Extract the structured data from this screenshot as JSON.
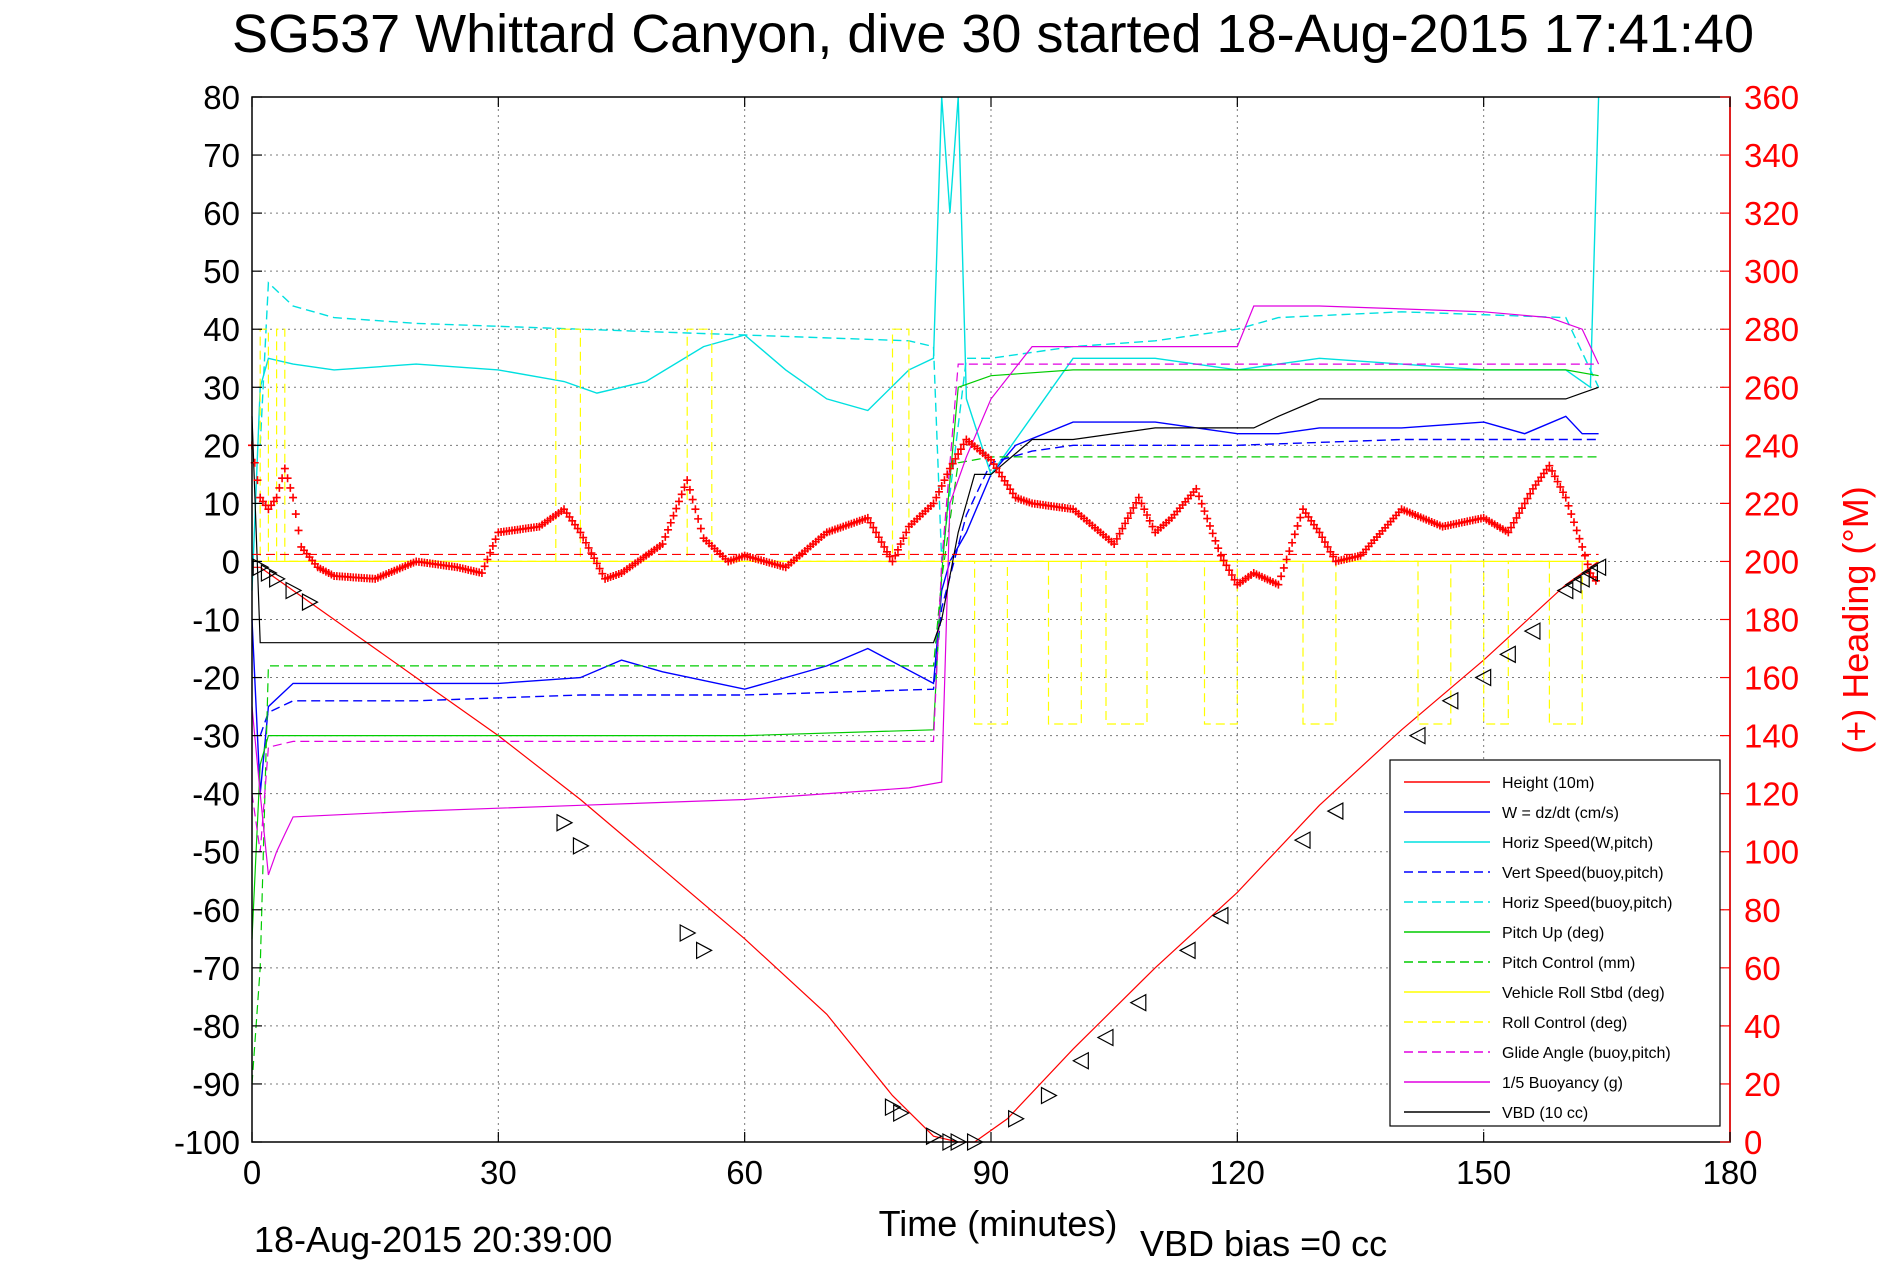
{
  "chart_data": {
    "type": "line",
    "title": "SG537 Whittard Canyon, dive 30 started 18-Aug-2015 17:41:40",
    "xlabel": "Time (minutes)",
    "ylabel": "",
    "y2label": "(+) Heading (°M)",
    "xlim": [
      0,
      180
    ],
    "ylim": [
      -100,
      80
    ],
    "y2lim": [
      0,
      360
    ],
    "xticks": [
      "0",
      "30",
      "60",
      "90",
      "120",
      "150",
      "180"
    ],
    "yticks": [
      "80",
      "70",
      "60",
      "50",
      "40",
      "30",
      "20",
      "10",
      "0",
      "-10",
      "-20",
      "-30",
      "-40",
      "-50",
      "-60",
      "-70",
      "-80",
      "-90",
      "-100"
    ],
    "y2ticks": [
      "360",
      "340",
      "320",
      "300",
      "280",
      "260",
      "240",
      "220",
      "200",
      "180",
      "160",
      "140",
      "120",
      "100",
      "80",
      "60",
      "40",
      "20",
      "0"
    ],
    "grid": true,
    "legend_position": "bottom-right",
    "footer_left": "18-Aug-2015 20:39:00",
    "footer_right": "VBD bias =0 cc",
    "series": [
      {
        "name": "Height (10m)",
        "color": "#ff0000",
        "style": "solid",
        "x": [
          0,
          1,
          2,
          5,
          10,
          20,
          30,
          40,
          50,
          60,
          70,
          78,
          83,
          86,
          88,
          92,
          100,
          110,
          120,
          130,
          140,
          150,
          160,
          164
        ],
        "y": [
          -1,
          -1,
          -2,
          -5,
          -10,
          -20,
          -30,
          -41,
          -53,
          -65,
          -78,
          -92,
          -99,
          -100,
          -100,
          -96,
          -84,
          -70,
          -57,
          -42,
          -29,
          -17,
          -4,
          0
        ]
      },
      {
        "name": "W = dz/dt (cm/s)",
        "color": "#0000ff",
        "style": "solid",
        "x": [
          0,
          1,
          2,
          5,
          10,
          20,
          30,
          40,
          45,
          50,
          60,
          70,
          75,
          83,
          84,
          85,
          87,
          90,
          93,
          100,
          110,
          120,
          125,
          130,
          140,
          150,
          155,
          160,
          162,
          164
        ],
        "y": [
          -10,
          -40,
          -25,
          -21,
          -21,
          -21,
          -21,
          -20,
          -17,
          -19,
          -22,
          -18,
          -15,
          -21,
          -5,
          0,
          5,
          15,
          20,
          24,
          24,
          22,
          22,
          23,
          23,
          24,
          22,
          25,
          22,
          22
        ]
      },
      {
        "name": "Horiz Speed(W,pitch)",
        "color": "#00e0e0",
        "style": "solid",
        "x": [
          0,
          1,
          2,
          5,
          10,
          20,
          30,
          38,
          42,
          48,
          55,
          60,
          65,
          70,
          75,
          80,
          83,
          84,
          85,
          86,
          87,
          90,
          95,
          100,
          110,
          120,
          125,
          130,
          140,
          150,
          155,
          160,
          163,
          164
        ],
        "y": [
          -5,
          30,
          35,
          34,
          33,
          34,
          33,
          31,
          29,
          31,
          37,
          39,
          33,
          28,
          26,
          33,
          35,
          80,
          60,
          80,
          28,
          15,
          25,
          35,
          35,
          33,
          34,
          35,
          34,
          33,
          33,
          33,
          30,
          80
        ]
      },
      {
        "name": "Vert Speed(buoy,pitch)",
        "color": "#0000ff",
        "style": "dashed",
        "x": [
          1,
          2,
          5,
          20,
          40,
          60,
          83,
          84,
          87,
          90,
          95,
          100,
          110,
          120,
          140,
          160,
          164
        ],
        "y": [
          -30,
          -26,
          -24,
          -24,
          -23,
          -23,
          -22,
          -8,
          8,
          17,
          19,
          20,
          20,
          20,
          21,
          21,
          21
        ]
      },
      {
        "name": "Horiz Speed(buoy,pitch)",
        "color": "#00e0e0",
        "style": "dashed",
        "x": [
          1,
          2,
          5,
          10,
          20,
          40,
          60,
          80,
          83,
          84,
          87,
          90,
          95,
          100,
          110,
          120,
          125,
          140,
          160,
          164
        ],
        "y": [
          20,
          48,
          44,
          42,
          41,
          40,
          39,
          38,
          37,
          0,
          35,
          35,
          36,
          37,
          38,
          40,
          42,
          43,
          42,
          30
        ]
      },
      {
        "name": "Pitch Up (deg)",
        "color": "#00cc00",
        "style": "solid",
        "x": [
          0,
          1,
          2,
          5,
          20,
          40,
          60,
          83,
          84,
          86,
          90,
          100,
          110,
          120,
          140,
          160,
          164
        ],
        "y": [
          -65,
          -35,
          -30,
          -30,
          -30,
          -30,
          -30,
          -29,
          -2,
          30,
          32,
          33,
          33,
          33,
          33,
          33,
          32
        ]
      },
      {
        "name": "Pitch Control (mm)",
        "color": "#00cc00",
        "style": "dashed",
        "x": [
          0,
          1,
          2,
          5,
          20,
          40,
          60,
          83,
          84,
          86,
          90,
          100,
          140,
          164
        ],
        "y": [
          -90,
          -70,
          -18,
          -18,
          -18,
          -18,
          -18,
          -18,
          -3,
          17,
          18,
          18,
          18,
          18
        ]
      },
      {
        "name": "Vehicle Roll Stbd (deg)",
        "color": "#ffff00",
        "style": "solid",
        "x": [
          0,
          1,
          2,
          10,
          40,
          80,
          84,
          88,
          100,
          130,
          164
        ],
        "y": [
          0,
          0,
          0,
          0,
          0,
          0,
          0,
          0,
          0,
          0,
          0
        ]
      },
      {
        "name": "Roll Control (deg)",
        "color": "#ffff00",
        "style": "dashed",
        "x": [
          0,
          1,
          1,
          2,
          2,
          3,
          3,
          4,
          4,
          5,
          5,
          37,
          37,
          40,
          40,
          53,
          53,
          56,
          56,
          78,
          78,
          80,
          80,
          88,
          88,
          92,
          92,
          97,
          97,
          101,
          101,
          104,
          104,
          109,
          109,
          116,
          116,
          120,
          120,
          128,
          128,
          132,
          132,
          142,
          142,
          146,
          146,
          150,
          150,
          153,
          153,
          158,
          158,
          162,
          162,
          164
        ],
        "y": [
          0,
          0,
          40,
          40,
          0,
          0,
          40,
          40,
          0,
          0,
          0,
          0,
          40,
          40,
          0,
          0,
          40,
          40,
          0,
          0,
          40,
          40,
          0,
          0,
          -28,
          -28,
          0,
          0,
          -28,
          -28,
          0,
          0,
          -28,
          -28,
          0,
          0,
          -28,
          -28,
          0,
          0,
          -28,
          -28,
          0,
          0,
          -28,
          -28,
          0,
          0,
          -28,
          -28,
          0,
          0,
          -28,
          -28,
          0,
          0
        ]
      },
      {
        "name": "Glide Angle (buoy,pitch)",
        "color": "#e000e0",
        "style": "dashed",
        "x": [
          0,
          1,
          2,
          5,
          20,
          40,
          60,
          83,
          84,
          86,
          90,
          100,
          120,
          140,
          160,
          164
        ],
        "y": [
          -40,
          -50,
          -32,
          -31,
          -31,
          -31,
          -31,
          -31,
          0,
          34,
          34,
          34,
          34,
          34,
          34,
          34
        ]
      },
      {
        "name": "1/5 Buoyancy (g)",
        "color": "#e000e0",
        "style": "solid",
        "x": [
          0,
          1,
          2,
          3,
          4,
          5,
          20,
          40,
          60,
          80,
          84,
          85,
          87,
          90,
          95,
          100,
          120,
          122,
          130,
          150,
          158,
          162,
          164
        ],
        "y": [
          -25,
          -40,
          -54,
          -50,
          -47,
          -44,
          -43,
          -42,
          -41,
          -39,
          -38,
          10,
          18,
          28,
          37,
          37,
          37,
          44,
          44,
          43,
          42,
          40,
          34
        ]
      },
      {
        "name": "VBD (10 cc)",
        "color": "#000000",
        "style": "solid",
        "x": [
          0,
          1,
          2,
          5,
          20,
          40,
          60,
          83,
          84,
          86,
          88,
          90,
          95,
          100,
          110,
          120,
          122,
          125,
          130,
          140,
          150,
          160,
          162,
          164
        ],
        "y": [
          25,
          -14,
          -14,
          -14,
          -14,
          -14,
          -14,
          -14,
          -10,
          5,
          15,
          15,
          21,
          21,
          23,
          23,
          23,
          25,
          28,
          28,
          28,
          28,
          29,
          30
        ]
      }
    ],
    "heading": {
      "name": "(+) Heading",
      "color": "#ff0000",
      "marker": "+",
      "x": [
        0,
        1,
        2,
        3,
        4,
        5,
        6,
        8,
        10,
        15,
        20,
        25,
        28,
        30,
        35,
        38,
        40,
        43,
        45,
        50,
        53,
        55,
        58,
        60,
        65,
        70,
        75,
        78,
        80,
        83,
        85,
        87,
        90,
        93,
        95,
        100,
        105,
        108,
        110,
        112,
        115,
        118,
        120,
        122,
        125,
        128,
        130,
        132,
        135,
        140,
        145,
        150,
        153,
        156,
        158,
        160,
        162,
        163,
        164
      ],
      "y": [
        240,
        222,
        218,
        222,
        232,
        222,
        205,
        198,
        195,
        194,
        200,
        198,
        196,
        210,
        212,
        218,
        210,
        194,
        196,
        206,
        228,
        208,
        200,
        202,
        198,
        210,
        215,
        200,
        212,
        220,
        232,
        242,
        235,
        222,
        220,
        218,
        206,
        222,
        210,
        215,
        225,
        202,
        192,
        196,
        192,
        218,
        210,
        200,
        202,
        218,
        212,
        215,
        210,
        225,
        233,
        222,
        205,
        196,
        192
      ]
    },
    "nav_markers": {
      "x": [
        1,
        2,
        3,
        5,
        7,
        38,
        40,
        53,
        55,
        78,
        79,
        83,
        85,
        86,
        88,
        93,
        97,
        101,
        104,
        108,
        114,
        118,
        128,
        132,
        142,
        146,
        150,
        153,
        156,
        160,
        161,
        162,
        163,
        164
      ],
      "y": [
        -1,
        -2,
        -3,
        -5,
        -7,
        -45,
        -49,
        -64,
        -67,
        -94,
        -95,
        -99,
        -100,
        -100,
        -100,
        -96,
        -92,
        -86,
        -82,
        -76,
        -67,
        -61,
        -48,
        -43,
        -30,
        -24,
        -20,
        -16,
        -12,
        -5,
        -4,
        -3,
        -2,
        -1
      ]
    }
  }
}
